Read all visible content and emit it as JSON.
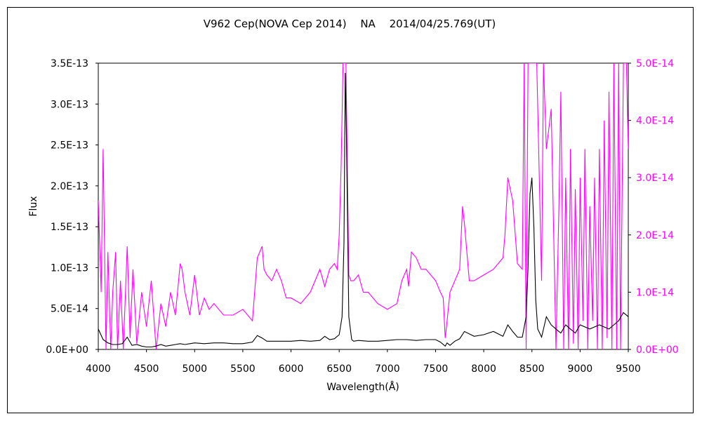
{
  "chart_data": {
    "type": "line",
    "title": "V962 Cep(NOVA Cep 2014)　 NA　 2014/04/25.769(UT)",
    "xlabel": "Wavelength(Å)",
    "ylabel": "Flux",
    "xlim": [
      4000,
      9500
    ],
    "ylim": [
      0,
      3.5e-13
    ],
    "y2lim": [
      0,
      5e-14
    ],
    "x_ticks": [
      "4000",
      "4500",
      "5000",
      "5500",
      "6000",
      "6500",
      "7000",
      "7500",
      "8000",
      "8500",
      "9000",
      "9500"
    ],
    "y_ticks": [
      "0.0E+00",
      "5.0E-14",
      "1.0E-13",
      "1.5E-13",
      "2.0E-13",
      "2.5E-13",
      "3.0E-13",
      "3.5E-13"
    ],
    "y2_ticks": [
      "0.0E+00",
      "1.0E-14",
      "2.0E-14",
      "3.0E-14",
      "4.0E-14",
      "5.0E-14"
    ],
    "grid": false,
    "colors": {
      "primary": "#000000",
      "secondary": "#ff00ff"
    },
    "series": [
      {
        "axis": "left",
        "color": "#000000",
        "x": [
          4000,
          4050,
          4100,
          4150,
          4200,
          4250,
          4300,
          4350,
          4400,
          4450,
          4500,
          4550,
          4600,
          4650,
          4700,
          4750,
          4800,
          4850,
          4900,
          4950,
          5000,
          5100,
          5200,
          5300,
          5400,
          5500,
          5600,
          5650,
          5700,
          5750,
          5800,
          5900,
          6000,
          6100,
          6200,
          6300,
          6350,
          6400,
          6450,
          6500,
          6530,
          6550,
          6563,
          6575,
          6600,
          6630,
          6650,
          6700,
          6800,
          6900,
          7000,
          7100,
          7200,
          7300,
          7400,
          7500,
          7550,
          7600,
          7620,
          7650,
          7700,
          7750,
          7800,
          7900,
          8000,
          8100,
          8200,
          8250,
          8300,
          8350,
          8400,
          8440,
          8460,
          8480,
          8500,
          8520,
          8540,
          8560,
          8600,
          8650,
          8700,
          8750,
          8800,
          8850,
          8900,
          8950,
          9000,
          9100,
          9200,
          9300,
          9400,
          9450,
          9500
        ],
        "values": [
          2.5e-14,
          1.2e-14,
          8e-15,
          6e-15,
          6e-15,
          7e-15,
          1.5e-14,
          5e-15,
          6e-15,
          4e-15,
          3e-15,
          3e-15,
          4e-15,
          6e-15,
          4e-15,
          5e-15,
          6e-15,
          7e-15,
          6e-15,
          7e-15,
          8e-15,
          7e-15,
          8e-15,
          8e-15,
          7e-15,
          7e-15,
          9e-15,
          1.7e-14,
          1.4e-14,
          1e-14,
          1e-14,
          1e-14,
          1e-14,
          1.1e-14,
          1e-14,
          1.1e-14,
          1.6e-14,
          1.2e-14,
          1.3e-14,
          1.8e-14,
          4e-14,
          1.3e-13,
          3.38e-13,
          2.6e-13,
          4e-14,
          1.2e-14,
          1e-14,
          1.1e-14,
          1e-14,
          1e-14,
          1.1e-14,
          1.2e-14,
          1.2e-14,
          1.1e-14,
          1.2e-14,
          1.2e-14,
          9e-15,
          4e-15,
          8e-15,
          5e-15,
          1e-14,
          1.3e-14,
          2.2e-14,
          1.6e-14,
          1.8e-14,
          2.2e-14,
          1.6e-14,
          3e-14,
          2.2e-14,
          1.5e-14,
          1.5e-14,
          4e-14,
          1e-13,
          1.9e-13,
          2.1e-13,
          1.5e-13,
          6e-14,
          2.5e-14,
          1.5e-14,
          4e-14,
          3e-14,
          2.5e-14,
          2e-14,
          3e-14,
          2.5e-14,
          2e-14,
          3e-14,
          2.5e-14,
          3e-14,
          2.5e-14,
          3.5e-14,
          4.5e-14,
          4e-14
        ]
      },
      {
        "axis": "right",
        "color": "#ff00ff",
        "x": [
          4000,
          4030,
          4050,
          4080,
          4100,
          4130,
          4150,
          4180,
          4200,
          4230,
          4260,
          4300,
          4330,
          4360,
          4400,
          4450,
          4500,
          4550,
          4600,
          4650,
          4700,
          4750,
          4800,
          4850,
          4870,
          4900,
          4950,
          5000,
          5050,
          5100,
          5150,
          5200,
          5300,
          5400,
          5500,
          5600,
          5650,
          5700,
          5720,
          5750,
          5800,
          5850,
          5900,
          5950,
          6000,
          6100,
          6200,
          6300,
          6350,
          6400,
          6450,
          6480,
          6500,
          6520,
          6540,
          6560,
          6570,
          6600,
          6620,
          6650,
          6700,
          6750,
          6800,
          6900,
          7000,
          7100,
          7150,
          7200,
          7220,
          7250,
          7300,
          7350,
          7400,
          7450,
          7500,
          7550,
          7580,
          7600,
          7620,
          7650,
          7700,
          7750,
          7780,
          7800,
          7850,
          7900,
          8000,
          8100,
          8150,
          8200,
          8220,
          8250,
          8300,
          8350,
          8400,
          8420,
          8440,
          8460,
          8480,
          8500,
          8520,
          8550,
          8600,
          8620,
          8650,
          8700,
          8750,
          8780,
          8800,
          8830,
          8850,
          8880,
          8900,
          8930,
          8950,
          8980,
          9000,
          9030,
          9050,
          9080,
          9100,
          9130,
          9150,
          9180,
          9200,
          9230,
          9250,
          9280,
          9300,
          9330,
          9350,
          9380,
          9400,
          9420,
          9450,
          9480,
          9500
        ],
        "values": [
          2.6e-14,
          1e-14,
          3.5e-14,
          0,
          1.7e-14,
          0,
          1e-14,
          1.7e-14,
          0,
          1.2e-14,
          0,
          1.8e-14,
          2e-15,
          1.4e-14,
          1e-15,
          1e-14,
          4e-15,
          1.2e-14,
          0,
          8e-15,
          4e-15,
          1e-14,
          6e-15,
          1.5e-14,
          1.4e-14,
          1e-14,
          6e-15,
          1.3e-14,
          6e-15,
          9e-15,
          7e-15,
          8e-15,
          6e-15,
          6e-15,
          7e-15,
          5e-15,
          1.6e-14,
          1.8e-14,
          1.4e-14,
          1.3e-14,
          1.2e-14,
          1.4e-14,
          1.2e-14,
          9e-15,
          9e-15,
          8e-15,
          1e-14,
          1.4e-14,
          1.1e-14,
          1.4e-14,
          1.5e-14,
          1.4e-14,
          2e-14,
          3.2e-14,
          5e-14,
          5e-14,
          5e-14,
          1.3e-14,
          1.2e-14,
          1.2e-14,
          1.3e-14,
          1e-14,
          1e-14,
          8e-15,
          7e-15,
          8e-15,
          1.2e-14,
          1.4e-14,
          1.1e-14,
          1.7e-14,
          1.6e-14,
          1.4e-14,
          1.4e-14,
          1.3e-14,
          1.2e-14,
          1e-14,
          9e-15,
          2e-15,
          5e-15,
          1e-14,
          1.2e-14,
          1.4e-14,
          2.5e-14,
          2.2e-14,
          1.2e-14,
          1.2e-14,
          1.3e-14,
          1.4e-14,
          1.5e-14,
          1.6e-14,
          2e-14,
          3e-14,
          2.6e-14,
          1.5e-14,
          1.4e-14,
          5e-14,
          0,
          5e-14,
          5e-14,
          5e-14,
          5e-14,
          5e-14,
          1.2e-14,
          5e-14,
          3.5e-14,
          4.2e-14,
          0,
          2.5e-14,
          4.5e-14,
          0,
          3e-14,
          0,
          3.5e-14,
          1e-15,
          2.8e-14,
          0,
          3e-14,
          5e-15,
          3.5e-14,
          0,
          2.5e-14,
          5e-15,
          3e-14,
          0,
          3.5e-14,
          0,
          4e-14,
          2e-15,
          4.5e-14,
          0,
          5e-14,
          0,
          5e-14,
          0,
          5e-14,
          5e-14,
          3.5e-14
        ]
      }
    ]
  }
}
